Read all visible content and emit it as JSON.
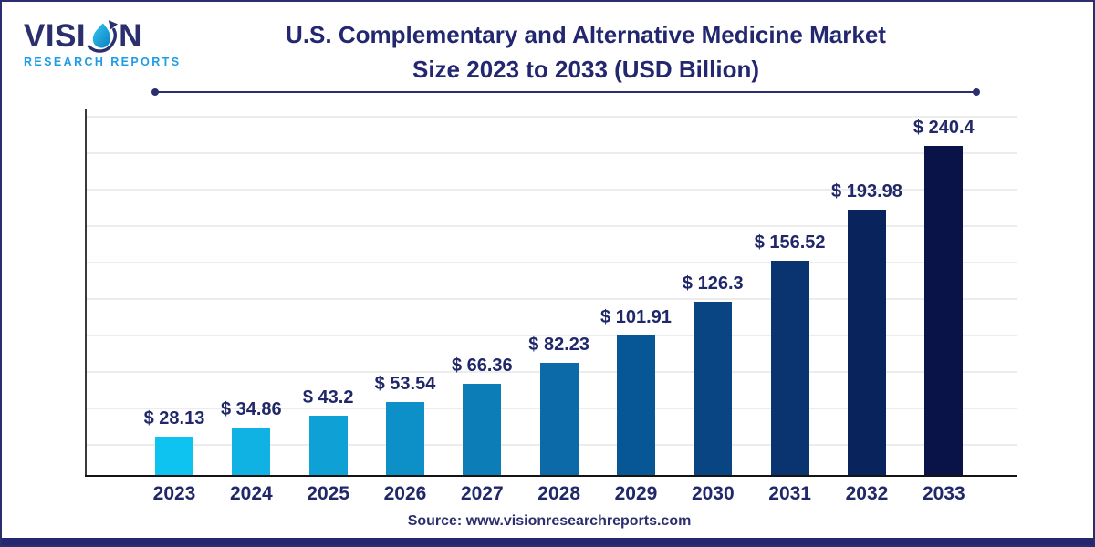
{
  "header": {
    "logo": {
      "brand_prefix": "VISI",
      "brand_suffix": "N",
      "subtitle": "RESEARCH REPORTS"
    },
    "title_line1": "U.S. Complementary and Alternative Medicine Market",
    "title_line2": "Size 2023 to 2033 (USD Billion)"
  },
  "chart_data": {
    "type": "bar",
    "title": "U.S. Complementary and Alternative Medicine Market Size 2023 to 2033 (USD Billion)",
    "categories": [
      "2023",
      "2024",
      "2025",
      "2026",
      "2027",
      "2028",
      "2029",
      "2030",
      "2031",
      "2032",
      "2033"
    ],
    "values": [
      28.13,
      34.86,
      43.2,
      53.54,
      66.36,
      82.23,
      101.91,
      126.3,
      156.52,
      193.98,
      240.4
    ],
    "value_labels": [
      "$ 28.13",
      "$ 34.86",
      "$ 43.2",
      "$ 53.54",
      "$ 66.36",
      "$ 82.23",
      "$ 101.91",
      "$ 126.3",
      "$ 156.52",
      "$ 193.98",
      "$ 240.4"
    ],
    "unit": "USD Billion",
    "xlabel": "",
    "ylabel": "",
    "ylim": [
      0,
      266
    ],
    "grid": "horizontal",
    "legend": "none",
    "y_tick_labels_visible": false,
    "bar_colors": [
      "#0fc3f1",
      "#10b1e3",
      "#0fa0d5",
      "#0d8fc7",
      "#0d7db8",
      "#0b6aa7",
      "#075695",
      "#094583",
      "#093470",
      "#09235c",
      "#0a1348"
    ]
  },
  "footer": {
    "source": "Source: www.visionresearchreports.com"
  },
  "colors": {
    "title_navy": "#23276f",
    "label_navy": "#212869",
    "logo_navy": "#2b2f6e",
    "logo_blue": "#1e9ce6",
    "gridline": "#ececec",
    "frame_border": "#2a2e6e",
    "bottom_bar": "#23276f"
  }
}
